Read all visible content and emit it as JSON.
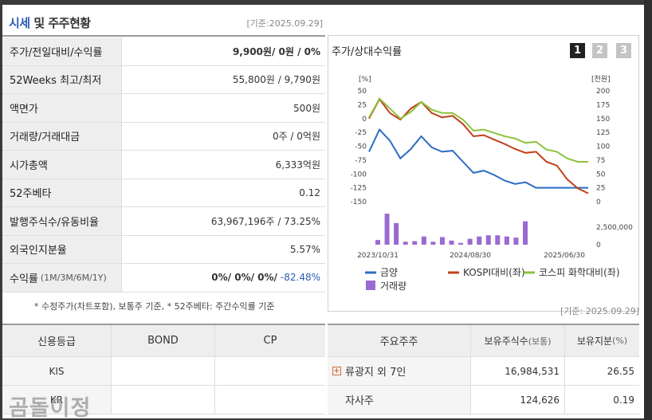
{
  "header": {
    "title_highlight": "시세",
    "title_rest": " 및 주주현황",
    "base_date": "[기준:2025.09.29]"
  },
  "market_rows": [
    {
      "label": "주가/전일대비/수익률",
      "value_bold": "9,900원",
      "value_rest": " / 0원 / 0%"
    },
    {
      "label": "52Weeks 최고/최저",
      "value": "55,800원 / 9,790원"
    },
    {
      "label": "액면가",
      "value": "500원"
    },
    {
      "label": "거래량/거래대금",
      "value": "0주 / 0억원"
    },
    {
      "label": "시가총액",
      "value": "6,333억원"
    },
    {
      "label": "52주베타",
      "value": "0.12"
    },
    {
      "label": "발행주식수/유동비율",
      "value": "63,967,196주 / 73.25%"
    },
    {
      "label": "외국인지분율",
      "value": "5.57%"
    },
    {
      "label": "수익률",
      "label_sub": "(1M/3M/6M/1Y)",
      "value": "0%/ 0%/ 0%/",
      "value_neg": "-82.48%"
    }
  ],
  "notes": {
    "footnote": "* 수정주가(차트포함), 보통주 기준, * 52주베타: 주간수익률 기준",
    "right_base_date": "[기준: 2025.09.29]"
  },
  "credit_table": {
    "headers": [
      "신용등급",
      "BOND",
      "CP"
    ],
    "rows": [
      {
        "agency": "KIS",
        "bond": "",
        "cp": ""
      },
      {
        "agency": "KR",
        "bond": "",
        "cp": ""
      }
    ]
  },
  "chart_panel": {
    "title": "주가/상대수익률",
    "pages": [
      "1",
      "2",
      "3"
    ],
    "active_page": "1"
  },
  "chart_data": {
    "type": "line",
    "left_axis_unit": "[%]",
    "right_axis_unit": "[천원]",
    "left_ticks": [
      "50",
      "25",
      "0",
      "-25",
      "-50",
      "-75",
      "-100",
      "-125",
      "-150"
    ],
    "right_ticks": [
      "200",
      "175",
      "150",
      "125",
      "100",
      "75",
      "50",
      "25",
      "0"
    ],
    "ylim_left": [
      -150,
      50
    ],
    "ylim_right": [
      0,
      200
    ],
    "volume_tick": "2,500,000",
    "volume_zero": "0",
    "volume_max": 6000000,
    "x_labels": [
      "2023/10/31",
      "2024/08/30",
      "2025/06/30"
    ],
    "series": [
      {
        "name": "금양",
        "axis": "right",
        "color": "#2b6cc4",
        "values": [
          90,
          130,
          110,
          78,
          95,
          118,
          98,
          90,
          92,
          72,
          52,
          56,
          48,
          38,
          32,
          35,
          25,
          25,
          25,
          25,
          25,
          25
        ]
      },
      {
        "name": "KOSPI대비(좌)",
        "axis": "left",
        "color": "#c0401a",
        "values": [
          0,
          35,
          10,
          -2,
          18,
          30,
          10,
          2,
          5,
          -10,
          -32,
          -30,
          -38,
          -46,
          -55,
          -62,
          -60,
          -78,
          -85,
          -110,
          -126,
          -135
        ]
      },
      {
        "name": "코스피 화학대비(좌)",
        "axis": "left",
        "color": "#8ec23a",
        "values": [
          2,
          36,
          18,
          0,
          12,
          30,
          16,
          10,
          10,
          -2,
          -22,
          -20,
          -26,
          -32,
          -36,
          -44,
          -42,
          -56,
          -60,
          -72,
          -78,
          -78
        ]
      }
    ],
    "volume": {
      "name": "거래량",
      "color": "#9a6ad0",
      "values": [
        800000,
        5300000,
        3700000,
        500000,
        600000,
        1400000,
        500000,
        1300000,
        700000,
        300000,
        1000000,
        1400000,
        1600000,
        1600000,
        1400000,
        1200000,
        4000000
      ]
    }
  },
  "shareholder_table": {
    "headers": {
      "name": "주요주주",
      "shares": "보유주식수",
      "shares_unit": "(보통)",
      "ratio": "보유지분",
      "ratio_unit": "(%)"
    },
    "rows": [
      {
        "name": "류광지 외 7인",
        "shares": "16,984,531",
        "ratio": "26.55",
        "expandable": true
      },
      {
        "name": "자사주",
        "shares": "124,626",
        "ratio": "0.19",
        "expandable": false
      }
    ]
  },
  "watermark": "곰돌이정"
}
